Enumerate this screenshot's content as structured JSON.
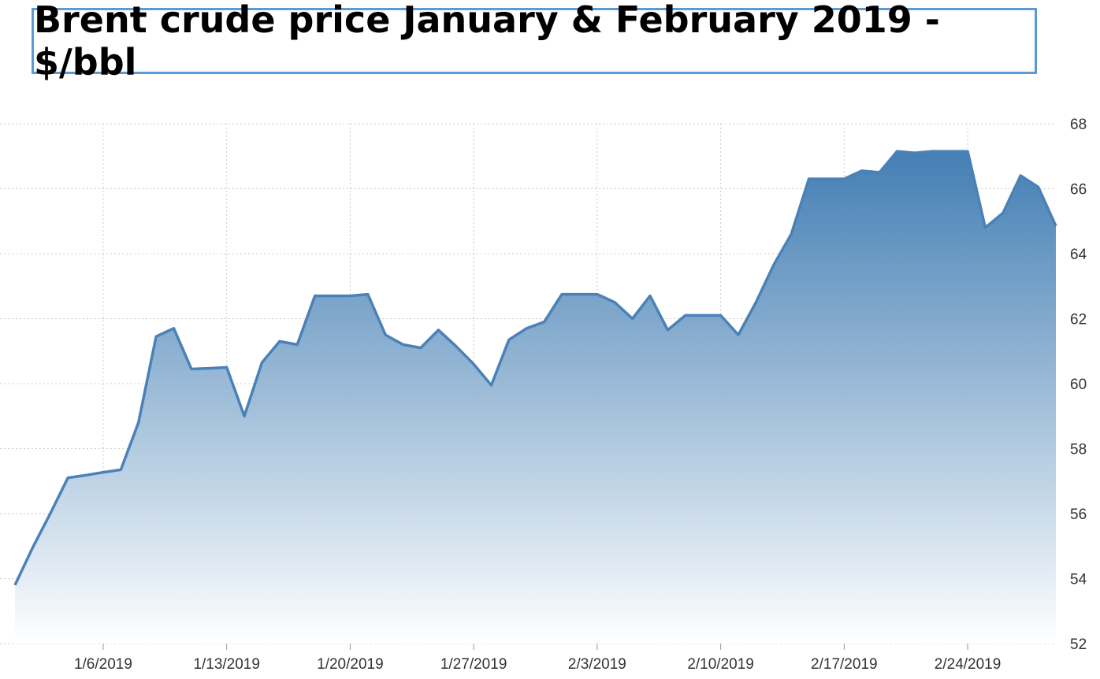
{
  "chart_data": {
    "type": "area",
    "title": "Brent crude price January & February 2019 - $/bbl",
    "x": [
      "1/1/2019",
      "1/2/2019",
      "1/3/2019",
      "1/4/2019",
      "1/5/2019",
      "1/6/2019",
      "1/7/2019",
      "1/8/2019",
      "1/9/2019",
      "1/10/2019",
      "1/11/2019",
      "1/12/2019",
      "1/13/2019",
      "1/14/2019",
      "1/15/2019",
      "1/16/2019",
      "1/17/2019",
      "1/18/2019",
      "1/19/2019",
      "1/20/2019",
      "1/21/2019",
      "1/22/2019",
      "1/23/2019",
      "1/24/2019",
      "1/25/2019",
      "1/26/2019",
      "1/27/2019",
      "1/28/2019",
      "1/29/2019",
      "1/30/2019",
      "1/31/2019",
      "2/1/2019",
      "2/2/2019",
      "2/3/2019",
      "2/4/2019",
      "2/5/2019",
      "2/6/2019",
      "2/7/2019",
      "2/8/2019",
      "2/9/2019",
      "2/10/2019",
      "2/11/2019",
      "2/12/2019",
      "2/13/2019",
      "2/14/2019",
      "2/15/2019",
      "2/16/2019",
      "2/17/2019",
      "2/18/2019",
      "2/19/2019",
      "2/20/2019",
      "2/21/2019",
      "2/22/2019",
      "2/23/2019",
      "2/24/2019",
      "2/25/2019",
      "2/26/2019",
      "2/27/2019",
      "2/28/2019",
      "3/1/2019"
    ],
    "series": [
      {
        "color": "#4a82b8",
        "values": [
          53.8,
          54.95,
          56.0,
          57.1,
          57.18,
          57.27,
          57.35,
          58.8,
          61.45,
          61.7,
          60.45,
          60.47,
          60.5,
          59.0,
          60.65,
          61.3,
          61.2,
          62.7,
          62.7,
          62.7,
          62.75,
          61.5,
          61.2,
          61.1,
          61.65,
          61.15,
          60.6,
          59.95,
          61.35,
          61.7,
          61.9,
          62.75,
          62.75,
          62.75,
          62.5,
          62.0,
          62.7,
          61.65,
          62.1,
          62.1,
          62.1,
          61.5,
          62.5,
          63.65,
          64.6,
          66.3,
          66.3,
          66.3,
          66.55,
          66.5,
          67.15,
          67.1,
          67.15,
          67.15,
          67.15,
          64.8,
          65.25,
          66.4,
          66.05,
          64.85
        ]
      }
    ],
    "xlim": [
      "1/1/2019",
      "3/1/2019"
    ],
    "xticks": [
      "1/6/2019",
      "1/13/2019",
      "1/20/2019",
      "1/27/2019",
      "2/3/2019",
      "2/10/2019",
      "2/17/2019",
      "2/24/2019"
    ],
    "ylim": [
      52,
      68
    ],
    "yticks": [
      52,
      54,
      56,
      58,
      60,
      62,
      64,
      66,
      68
    ],
    "grid": true
  }
}
